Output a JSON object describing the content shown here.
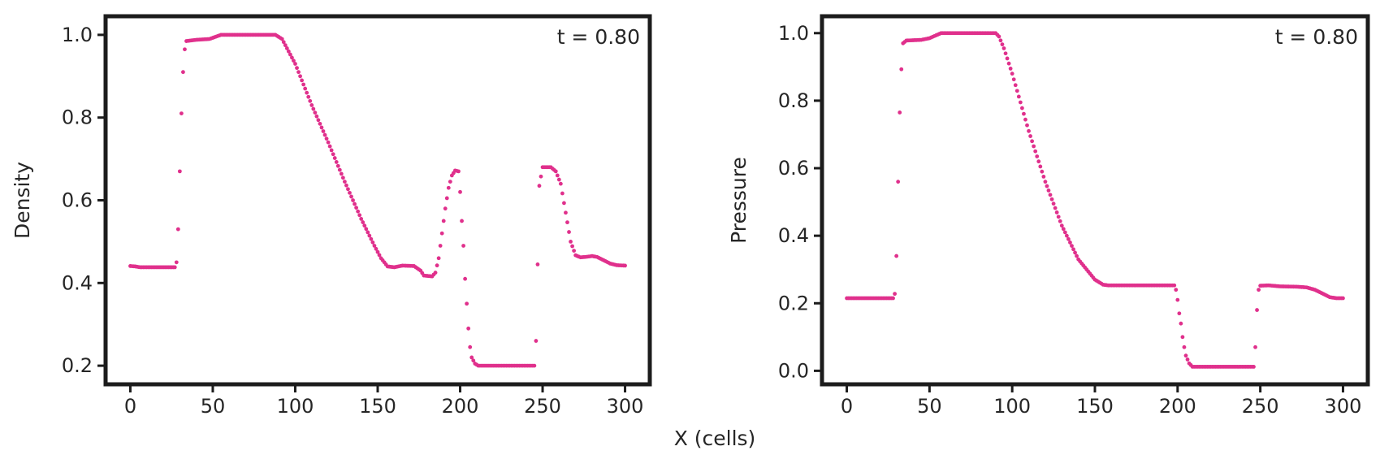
{
  "figure": {
    "shared_xlabel": "X (cells)"
  },
  "chart_data": [
    {
      "type": "scatter",
      "title": "",
      "xlabel": "",
      "ylabel": "Density",
      "annotation": "t = 0.80",
      "xlim": [
        -15,
        315
      ],
      "ylim": [
        0.155,
        1.045
      ],
      "xticks": [
        0,
        50,
        100,
        150,
        200,
        250,
        300
      ],
      "yticks": [
        0.2,
        0.4,
        0.6,
        0.8,
        1.0
      ],
      "xtick_labels": [
        "0",
        "50",
        "100",
        "150",
        "200",
        "250",
        "300"
      ],
      "ytick_labels": [
        "0.2",
        "0.4",
        "0.6",
        "0.8",
        "1.0"
      ],
      "grid": false,
      "color": "#e0308c",
      "anchors": [
        [
          0,
          0.441
        ],
        [
          3,
          0.44
        ],
        [
          6,
          0.438
        ],
        [
          27,
          0.438
        ],
        [
          28,
          0.45
        ],
        [
          29,
          0.53
        ],
        [
          30,
          0.67
        ],
        [
          31,
          0.81
        ],
        [
          32,
          0.91
        ],
        [
          33,
          0.965
        ],
        [
          34,
          0.985
        ],
        [
          40,
          0.988
        ],
        [
          48,
          0.99
        ],
        [
          55,
          1.0
        ],
        [
          88,
          1.0
        ],
        [
          92,
          0.99
        ],
        [
          100,
          0.93
        ],
        [
          110,
          0.83
        ],
        [
          120,
          0.74
        ],
        [
          130,
          0.645
        ],
        [
          140,
          0.555
        ],
        [
          148,
          0.49
        ],
        [
          152,
          0.46
        ],
        [
          156,
          0.44
        ],
        [
          160,
          0.438
        ],
        [
          165,
          0.442
        ],
        [
          172,
          0.441
        ],
        [
          176,
          0.43
        ],
        [
          178,
          0.418
        ],
        [
          183,
          0.416
        ],
        [
          185,
          0.425
        ],
        [
          187,
          0.46
        ],
        [
          189,
          0.52
        ],
        [
          191,
          0.58
        ],
        [
          193,
          0.63
        ],
        [
          195,
          0.66
        ],
        [
          197,
          0.672
        ],
        [
          199,
          0.67
        ],
        [
          200,
          0.62
        ],
        [
          201,
          0.55
        ],
        [
          202,
          0.49
        ],
        [
          203,
          0.41
        ],
        [
          204,
          0.35
        ],
        [
          205,
          0.29
        ],
        [
          206,
          0.245
        ],
        [
          207,
          0.22
        ],
        [
          209,
          0.205
        ],
        [
          211,
          0.2
        ],
        [
          244,
          0.2
        ],
        [
          245,
          0.2
        ],
        [
          246,
          0.26
        ],
        [
          247,
          0.445
        ],
        [
          248,
          0.635
        ],
        [
          250,
          0.68
        ],
        [
          255,
          0.68
        ],
        [
          258,
          0.67
        ],
        [
          261,
          0.64
        ],
        [
          264,
          0.57
        ],
        [
          267,
          0.5
        ],
        [
          270,
          0.467
        ],
        [
          273,
          0.462
        ],
        [
          276,
          0.463
        ],
        [
          280,
          0.465
        ],
        [
          283,
          0.463
        ],
        [
          287,
          0.455
        ],
        [
          291,
          0.447
        ],
        [
          295,
          0.443
        ],
        [
          300,
          0.442
        ]
      ]
    },
    {
      "type": "scatter",
      "title": "",
      "xlabel": "",
      "ylabel": "Pressure",
      "annotation": "t = 0.80",
      "xlim": [
        -15,
        315
      ],
      "ylim": [
        -0.04,
        1.05
      ],
      "xticks": [
        0,
        50,
        100,
        150,
        200,
        250,
        300
      ],
      "yticks": [
        0.0,
        0.2,
        0.4,
        0.6,
        0.8,
        1.0
      ],
      "xtick_labels": [
        "0",
        "50",
        "100",
        "150",
        "200",
        "250",
        "300"
      ],
      "ytick_labels": [
        "0.0",
        "0.2",
        "0.4",
        "0.6",
        "0.8",
        "1.0"
      ],
      "grid": false,
      "color": "#e0308c",
      "anchors": [
        [
          0,
          0.215
        ],
        [
          28,
          0.215
        ],
        [
          29,
          0.228
        ],
        [
          30,
          0.34
        ],
        [
          31,
          0.56
        ],
        [
          32,
          0.765
        ],
        [
          33,
          0.893
        ],
        [
          34,
          0.97
        ],
        [
          36,
          0.978
        ],
        [
          45,
          0.98
        ],
        [
          50,
          0.985
        ],
        [
          57,
          1.0
        ],
        [
          90,
          1.0
        ],
        [
          92,
          0.99
        ],
        [
          95,
          0.955
        ],
        [
          100,
          0.88
        ],
        [
          110,
          0.71
        ],
        [
          120,
          0.56
        ],
        [
          130,
          0.43
        ],
        [
          140,
          0.33
        ],
        [
          150,
          0.27
        ],
        [
          155,
          0.255
        ],
        [
          158,
          0.253
        ],
        [
          198,
          0.253
        ],
        [
          199,
          0.24
        ],
        [
          200,
          0.21
        ],
        [
          201,
          0.17
        ],
        [
          202,
          0.14
        ],
        [
          203,
          0.1
        ],
        [
          204,
          0.07
        ],
        [
          205,
          0.045
        ],
        [
          207,
          0.022
        ],
        [
          209,
          0.012
        ],
        [
          246,
          0.012
        ],
        [
          247,
          0.07
        ],
        [
          248,
          0.18
        ],
        [
          249,
          0.24
        ],
        [
          250,
          0.252
        ],
        [
          255,
          0.253
        ],
        [
          262,
          0.25
        ],
        [
          272,
          0.249
        ],
        [
          278,
          0.247
        ],
        [
          283,
          0.24
        ],
        [
          288,
          0.228
        ],
        [
          292,
          0.218
        ],
        [
          296,
          0.215
        ],
        [
          300,
          0.215
        ]
      ]
    }
  ]
}
